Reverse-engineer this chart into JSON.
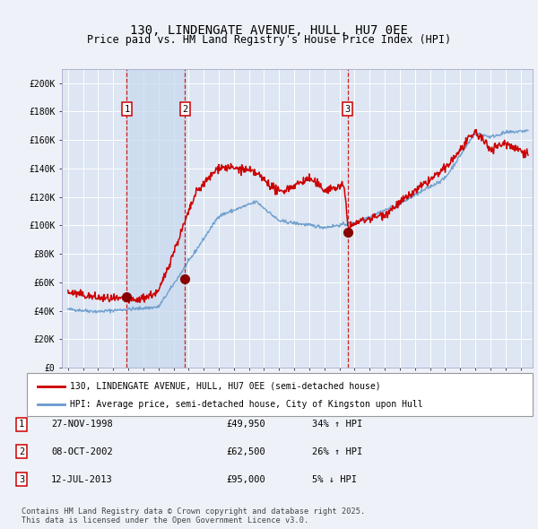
{
  "title": "130, LINDENGATE AVENUE, HULL, HU7 0EE",
  "subtitle": "Price paid vs. HM Land Registry's House Price Index (HPI)",
  "title_fontsize": 10,
  "subtitle_fontsize": 8.5,
  "background_color": "#eef2f8",
  "plot_bg_color": "#dde6f2",
  "grid_color": "#ffffff",
  "ylim": [
    0,
    210000
  ],
  "ytick_labels": [
    "£0",
    "£20K",
    "£40K",
    "£60K",
    "£80K",
    "£100K",
    "£120K",
    "£140K",
    "£160K",
    "£180K",
    "£200K"
  ],
  "ytick_vals": [
    0,
    20000,
    40000,
    60000,
    80000,
    100000,
    120000,
    140000,
    160000,
    180000,
    200000
  ],
  "red_line_color": "#cc0000",
  "blue_line_color": "#6699cc",
  "sale_dot_color": "#880000",
  "sale_marker_size": 7,
  "sale_events": [
    {
      "date_num": 1998.9,
      "price": 49950,
      "label": "1",
      "hpi_change": "34% ↑ HPI",
      "date_str": "27-NOV-1998"
    },
    {
      "date_num": 2002.77,
      "price": 62500,
      "label": "2",
      "hpi_change": "26% ↑ HPI",
      "date_str": "08-OCT-2002"
    },
    {
      "date_num": 2013.53,
      "price": 95000,
      "label": "3",
      "hpi_change": "5% ↓ HPI",
      "date_str": "12-JUL-2013"
    }
  ],
  "shaded_region_color": "#c8d8ee",
  "shaded_region_alpha": 0.7,
  "vline_color": "#cc0000",
  "vline_style": "--",
  "legend_red_label": "130, LINDENGATE AVENUE, HULL, HU7 0EE (semi-detached house)",
  "legend_blue_label": "HPI: Average price, semi-detached house, City of Kingston upon Hull",
  "footnote": "Contains HM Land Registry data © Crown copyright and database right 2025.\nThis data is licensed under the Open Government Licence v3.0.",
  "xlim_left": 1994.6,
  "xlim_right": 2025.8
}
